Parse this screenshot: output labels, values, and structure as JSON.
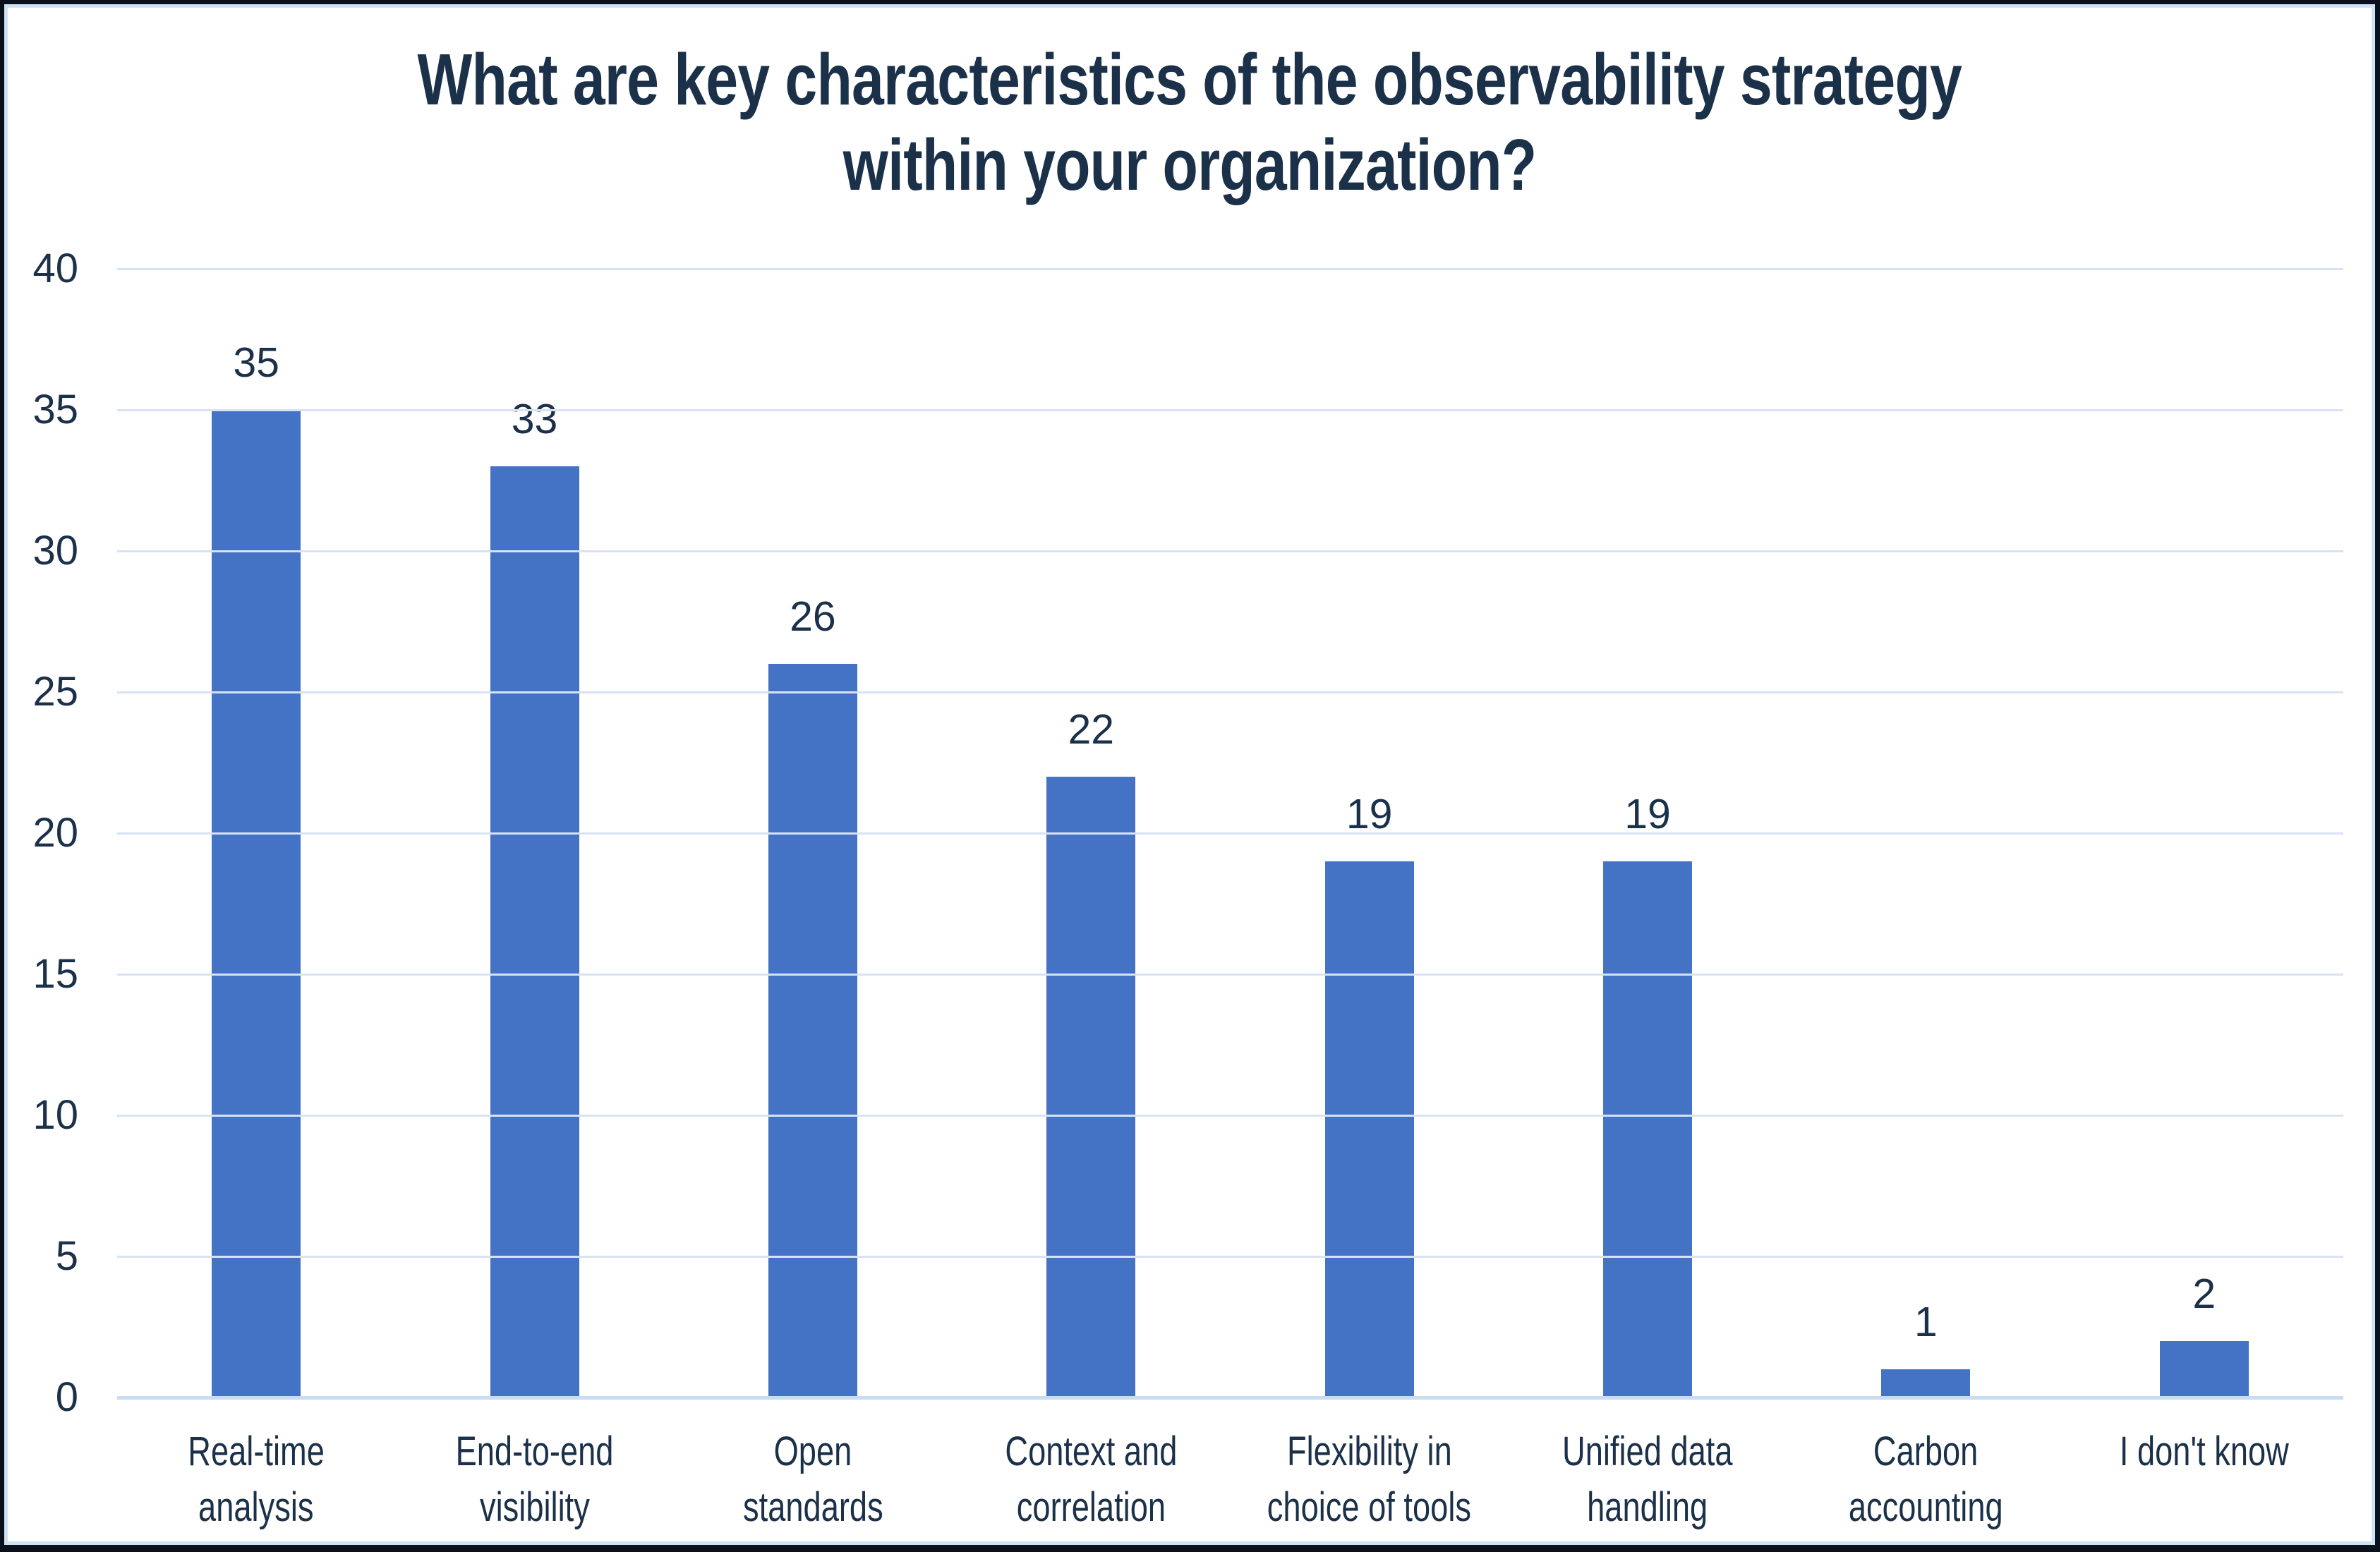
{
  "chart_data": {
    "type": "bar",
    "title": "What are key characteristics of the observability strategy within your organization?",
    "title_lines": [
      "What are key characteristics of the observability strategy",
      "within your organization?"
    ],
    "categories": [
      "Real-time analysis",
      "End-to-end visibility",
      "Open standards",
      "Context and correlation",
      "Flexibility in choice of tools",
      "Unified data handling",
      "Carbon accounting",
      "I don't know"
    ],
    "category_label_lines": [
      [
        "Real-time",
        "analysis"
      ],
      [
        "End-to-end",
        "visibility"
      ],
      [
        "Open",
        "standards"
      ],
      [
        "Context and",
        "correlation"
      ],
      [
        "Flexibility in",
        "choice of tools"
      ],
      [
        "Unified data",
        "handling"
      ],
      [
        "Carbon",
        "accounting"
      ],
      [
        "I don't know"
      ]
    ],
    "values": [
      35,
      33,
      26,
      22,
      19,
      19,
      1,
      2
    ],
    "data_labels": [
      "35",
      "33",
      "26",
      "22",
      "19",
      "19",
      "1",
      "2"
    ],
    "ylim": [
      0,
      40
    ],
    "ytick_interval": 5,
    "ytick_labels": [
      "0",
      "5",
      "10",
      "15",
      "20",
      "25",
      "30",
      "35",
      "40"
    ],
    "grid": true,
    "legend": "none",
    "colors": {
      "bar": "#4472C4",
      "gridline": "#D7E3F4",
      "axis_line": "#C9DCF1",
      "text": "#1B3049",
      "title": "#1B3049",
      "background": "#FFFFFF",
      "outer_border": "#0A111C",
      "inner_border": "#CFE2F5"
    }
  }
}
